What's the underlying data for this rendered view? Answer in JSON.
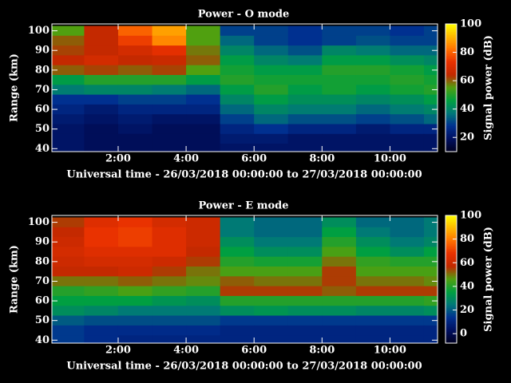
{
  "chart_data": [
    {
      "type": "heatmap",
      "title": "Power - O mode",
      "x_label": "Universal time - 26/03/2018 00:00:00 to 27/03/2018 00:00:00",
      "y_label": "Range (km)",
      "colorbar_label": "Signal power (dB)",
      "x": [
        0.5,
        1.5,
        2.5,
        3.5,
        4.5,
        5.5,
        6.5,
        7.5,
        8.5,
        9.5,
        10.5,
        11.5
      ],
      "y": [
        100,
        95,
        90,
        85,
        80,
        75,
        70,
        65,
        60,
        55,
        50,
        45,
        40
      ],
      "z": [
        [
          55,
          65,
          80,
          88,
          55,
          30,
          30,
          28,
          30,
          30,
          28,
          30
        ],
        [
          60,
          65,
          75,
          85,
          55,
          35,
          30,
          28,
          30,
          32,
          30,
          30
        ],
        [
          62,
          65,
          68,
          72,
          58,
          40,
          35,
          32,
          40,
          38,
          35,
          35
        ],
        [
          65,
          68,
          65,
          66,
          60,
          45,
          40,
          38,
          45,
          45,
          42,
          40
        ],
        [
          60,
          62,
          60,
          62,
          55,
          48,
          45,
          45,
          50,
          50,
          48,
          45
        ],
        [
          45,
          50,
          50,
          50,
          45,
          50,
          48,
          48,
          48,
          48,
          50,
          48
        ],
        [
          38,
          40,
          40,
          38,
          35,
          45,
          50,
          45,
          48,
          45,
          48,
          50
        ],
        [
          28,
          28,
          30,
          30,
          28,
          40,
          45,
          42,
          42,
          40,
          42,
          45
        ],
        [
          25,
          22,
          25,
          25,
          25,
          35,
          40,
          38,
          38,
          35,
          38,
          40
        ],
        [
          22,
          20,
          22,
          20,
          20,
          30,
          35,
          32,
          32,
          30,
          32,
          35
        ],
        [
          20,
          18,
          20,
          18,
          18,
          25,
          28,
          25,
          25,
          22,
          25,
          25
        ],
        [
          20,
          18,
          18,
          18,
          18,
          22,
          22,
          20,
          20,
          20,
          20,
          20
        ],
        [
          20,
          18,
          18,
          18,
          18,
          20,
          20,
          20,
          20,
          20,
          20,
          20
        ]
      ],
      "xlim": [
        0.05,
        11.4
      ],
      "xticks": [
        {
          "value": 2,
          "label": "2:00"
        },
        {
          "value": 4,
          "label": "4:00"
        },
        {
          "value": 6,
          "label": "6:00"
        },
        {
          "value": 8,
          "label": "8:00"
        },
        {
          "value": 10,
          "label": "10:00"
        }
      ],
      "ylim": [
        38.5,
        103.5
      ],
      "yticks": [
        40,
        50,
        60,
        70,
        80,
        90,
        100
      ],
      "zlim": [
        10,
        100
      ],
      "zticks": [
        20,
        40,
        60,
        80,
        100
      ],
      "colorscale": [
        "#000022",
        "#001060",
        "#003090",
        "#007878",
        "#00a040",
        "#50a010",
        "#c02800",
        "#e83000",
        "#ff7000",
        "#ffb800",
        "#ffff00"
      ]
    },
    {
      "type": "heatmap",
      "title": "Power - E mode",
      "x_label": "Universal time - 26/03/2018 00:00:00 to 27/03/2018 00:00:00",
      "y_label": "Range (km)",
      "colorbar_label": "Signal power (dB)",
      "x": [
        0.5,
        1.5,
        2.5,
        3.5,
        4.5,
        5.5,
        6.5,
        7.5,
        8.5,
        9.5,
        10.5,
        11.5
      ],
      "y": [
        100,
        95,
        90,
        85,
        80,
        75,
        70,
        65,
        60,
        55,
        50,
        45,
        40
      ],
      "z": [
        [
          55,
          65,
          68,
          62,
          60,
          25,
          22,
          22,
          30,
          22,
          22,
          25
        ],
        [
          58,
          68,
          70,
          65,
          60,
          25,
          22,
          22,
          35,
          25,
          22,
          25
        ],
        [
          60,
          68,
          70,
          65,
          60,
          30,
          25,
          25,
          40,
          30,
          25,
          28
        ],
        [
          62,
          65,
          65,
          65,
          58,
          35,
          30,
          30,
          45,
          35,
          30,
          35
        ],
        [
          60,
          62,
          62,
          60,
          55,
          40,
          38,
          38,
          50,
          42,
          40,
          40
        ],
        [
          58,
          58,
          60,
          55,
          50,
          45,
          45,
          45,
          55,
          45,
          45,
          45
        ],
        [
          50,
          50,
          52,
          50,
          48,
          52,
          50,
          50,
          55,
          50,
          50,
          48
        ],
        [
          40,
          42,
          45,
          42,
          40,
          55,
          55,
          55,
          52,
          55,
          55,
          55
        ],
        [
          35,
          35,
          35,
          32,
          30,
          40,
          40,
          40,
          40,
          40,
          40,
          42
        ],
        [
          30,
          28,
          25,
          25,
          25,
          30,
          32,
          30,
          30,
          28,
          28,
          30
        ],
        [
          20,
          18,
          18,
          18,
          18,
          15,
          15,
          15,
          15,
          15,
          15,
          15
        ],
        [
          15,
          12,
          12,
          12,
          12,
          10,
          10,
          10,
          10,
          10,
          10,
          10
        ],
        [
          15,
          12,
          10,
          10,
          10,
          10,
          10,
          10,
          10,
          10,
          10,
          10
        ]
      ],
      "xlim": [
        0.05,
        11.4
      ],
      "xticks": [
        {
          "value": 2,
          "label": "2:00"
        },
        {
          "value": 4,
          "label": "4:00"
        },
        {
          "value": 6,
          "label": "6:00"
        },
        {
          "value": 8,
          "label": "8:00"
        },
        {
          "value": 10,
          "label": "10:00"
        }
      ],
      "ylim": [
        38.5,
        103.5
      ],
      "yticks": [
        40,
        50,
        60,
        70,
        80,
        90,
        100
      ],
      "zlim": [
        -8,
        100
      ],
      "zticks": [
        0,
        20,
        40,
        60,
        80,
        100
      ],
      "colorscale": [
        "#000022",
        "#001060",
        "#003090",
        "#007878",
        "#00a040",
        "#50a010",
        "#c02800",
        "#e83000",
        "#ff7000",
        "#ffb800",
        "#ffff00"
      ]
    }
  ]
}
